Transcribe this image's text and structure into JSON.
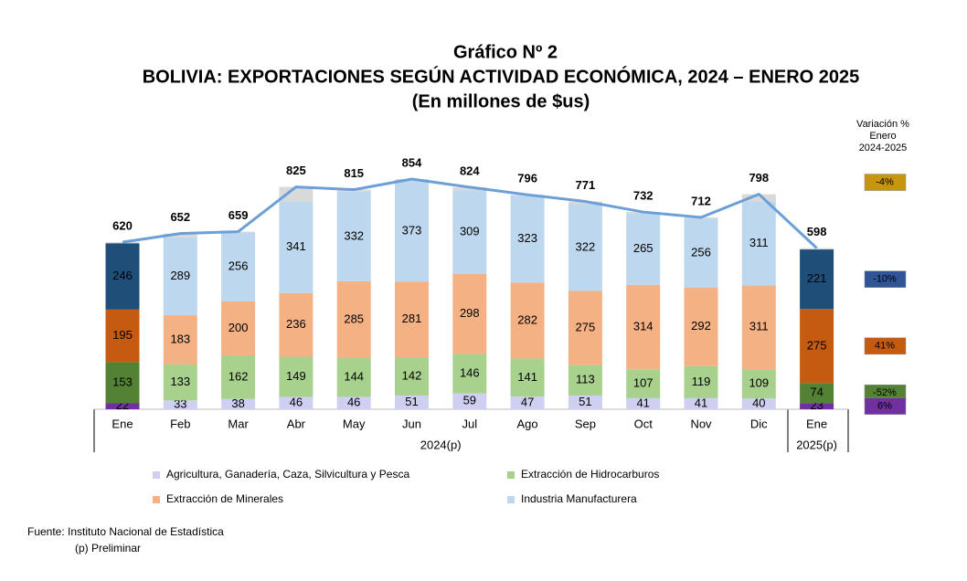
{
  "chart_data": {
    "type": "stacked_bar_line",
    "title": "Gráfico Nº 2",
    "subtitle": "BOLIVIA: EXPORTACIONES SEGÚN ACTIVIDAD ECONÓMICA, 2024 – ENERO 2025",
    "unit_label": "(En millones de $us)",
    "categories": [
      "Ene",
      "Feb",
      "Mar",
      "Abr",
      "May",
      "Jun",
      "Jul",
      "Ago",
      "Sep",
      "Oct",
      "Nov",
      "Dic",
      "Ene"
    ],
    "groups": [
      {
        "label": "2024(p)",
        "from": 0,
        "to": 11
      },
      {
        "label": "2025(p)",
        "from": 12,
        "to": 12
      }
    ],
    "highlight": [
      0,
      12
    ],
    "series": [
      {
        "name": "Agricultura, Ganadería, Caza, Silvicultura y Pesca",
        "color": "#cfcff2",
        "highlight_color": "#7030a0",
        "values": [
          22,
          33,
          38,
          46,
          46,
          51,
          59,
          47,
          51,
          41,
          41,
          40,
          23
        ]
      },
      {
        "name": "Extracción de Hidrocarburos",
        "color": "#a9d18e",
        "highlight_color": "#548235",
        "values": [
          153,
          133,
          162,
          149,
          144,
          142,
          146,
          141,
          113,
          107,
          119,
          109,
          74
        ]
      },
      {
        "name": "Extracción de Minerales",
        "color": "#f4b183",
        "highlight_color": "#c55a11",
        "values": [
          195,
          183,
          200,
          236,
          285,
          281,
          298,
          282,
          275,
          314,
          292,
          311,
          275
        ]
      },
      {
        "name": "Industria Manufacturera",
        "color": "#bdd7ee",
        "highlight_color": "#1f4e79",
        "values": [
          246,
          289,
          256,
          341,
          332,
          373,
          309,
          323,
          322,
          265,
          256,
          311,
          221
        ]
      }
    ],
    "totals": {
      "color": "#6a9fd8",
      "other_color": "#d9d9d9",
      "values": [
        620,
        652,
        659,
        825,
        815,
        854,
        824,
        796,
        771,
        732,
        712,
        798,
        598
      ]
    },
    "variation": {
      "title_lines": [
        "Variación %",
        "Enero",
        "2024-2025"
      ],
      "items": [
        {
          "value": -4,
          "label": "-4%",
          "color": "#c8960c"
        },
        {
          "value": -10,
          "label": "-10%",
          "color": "#2f5597"
        },
        {
          "value": 41,
          "label": "41%",
          "color": "#c55a11"
        },
        {
          "value": -52,
          "label": "-52%",
          "color": "#548235"
        },
        {
          "value": 6,
          "label": "6%",
          "color": "#7030a0"
        }
      ]
    },
    "source": "Fuente: Instituto Nacional de Estadística",
    "note": "(p) Preliminar"
  }
}
